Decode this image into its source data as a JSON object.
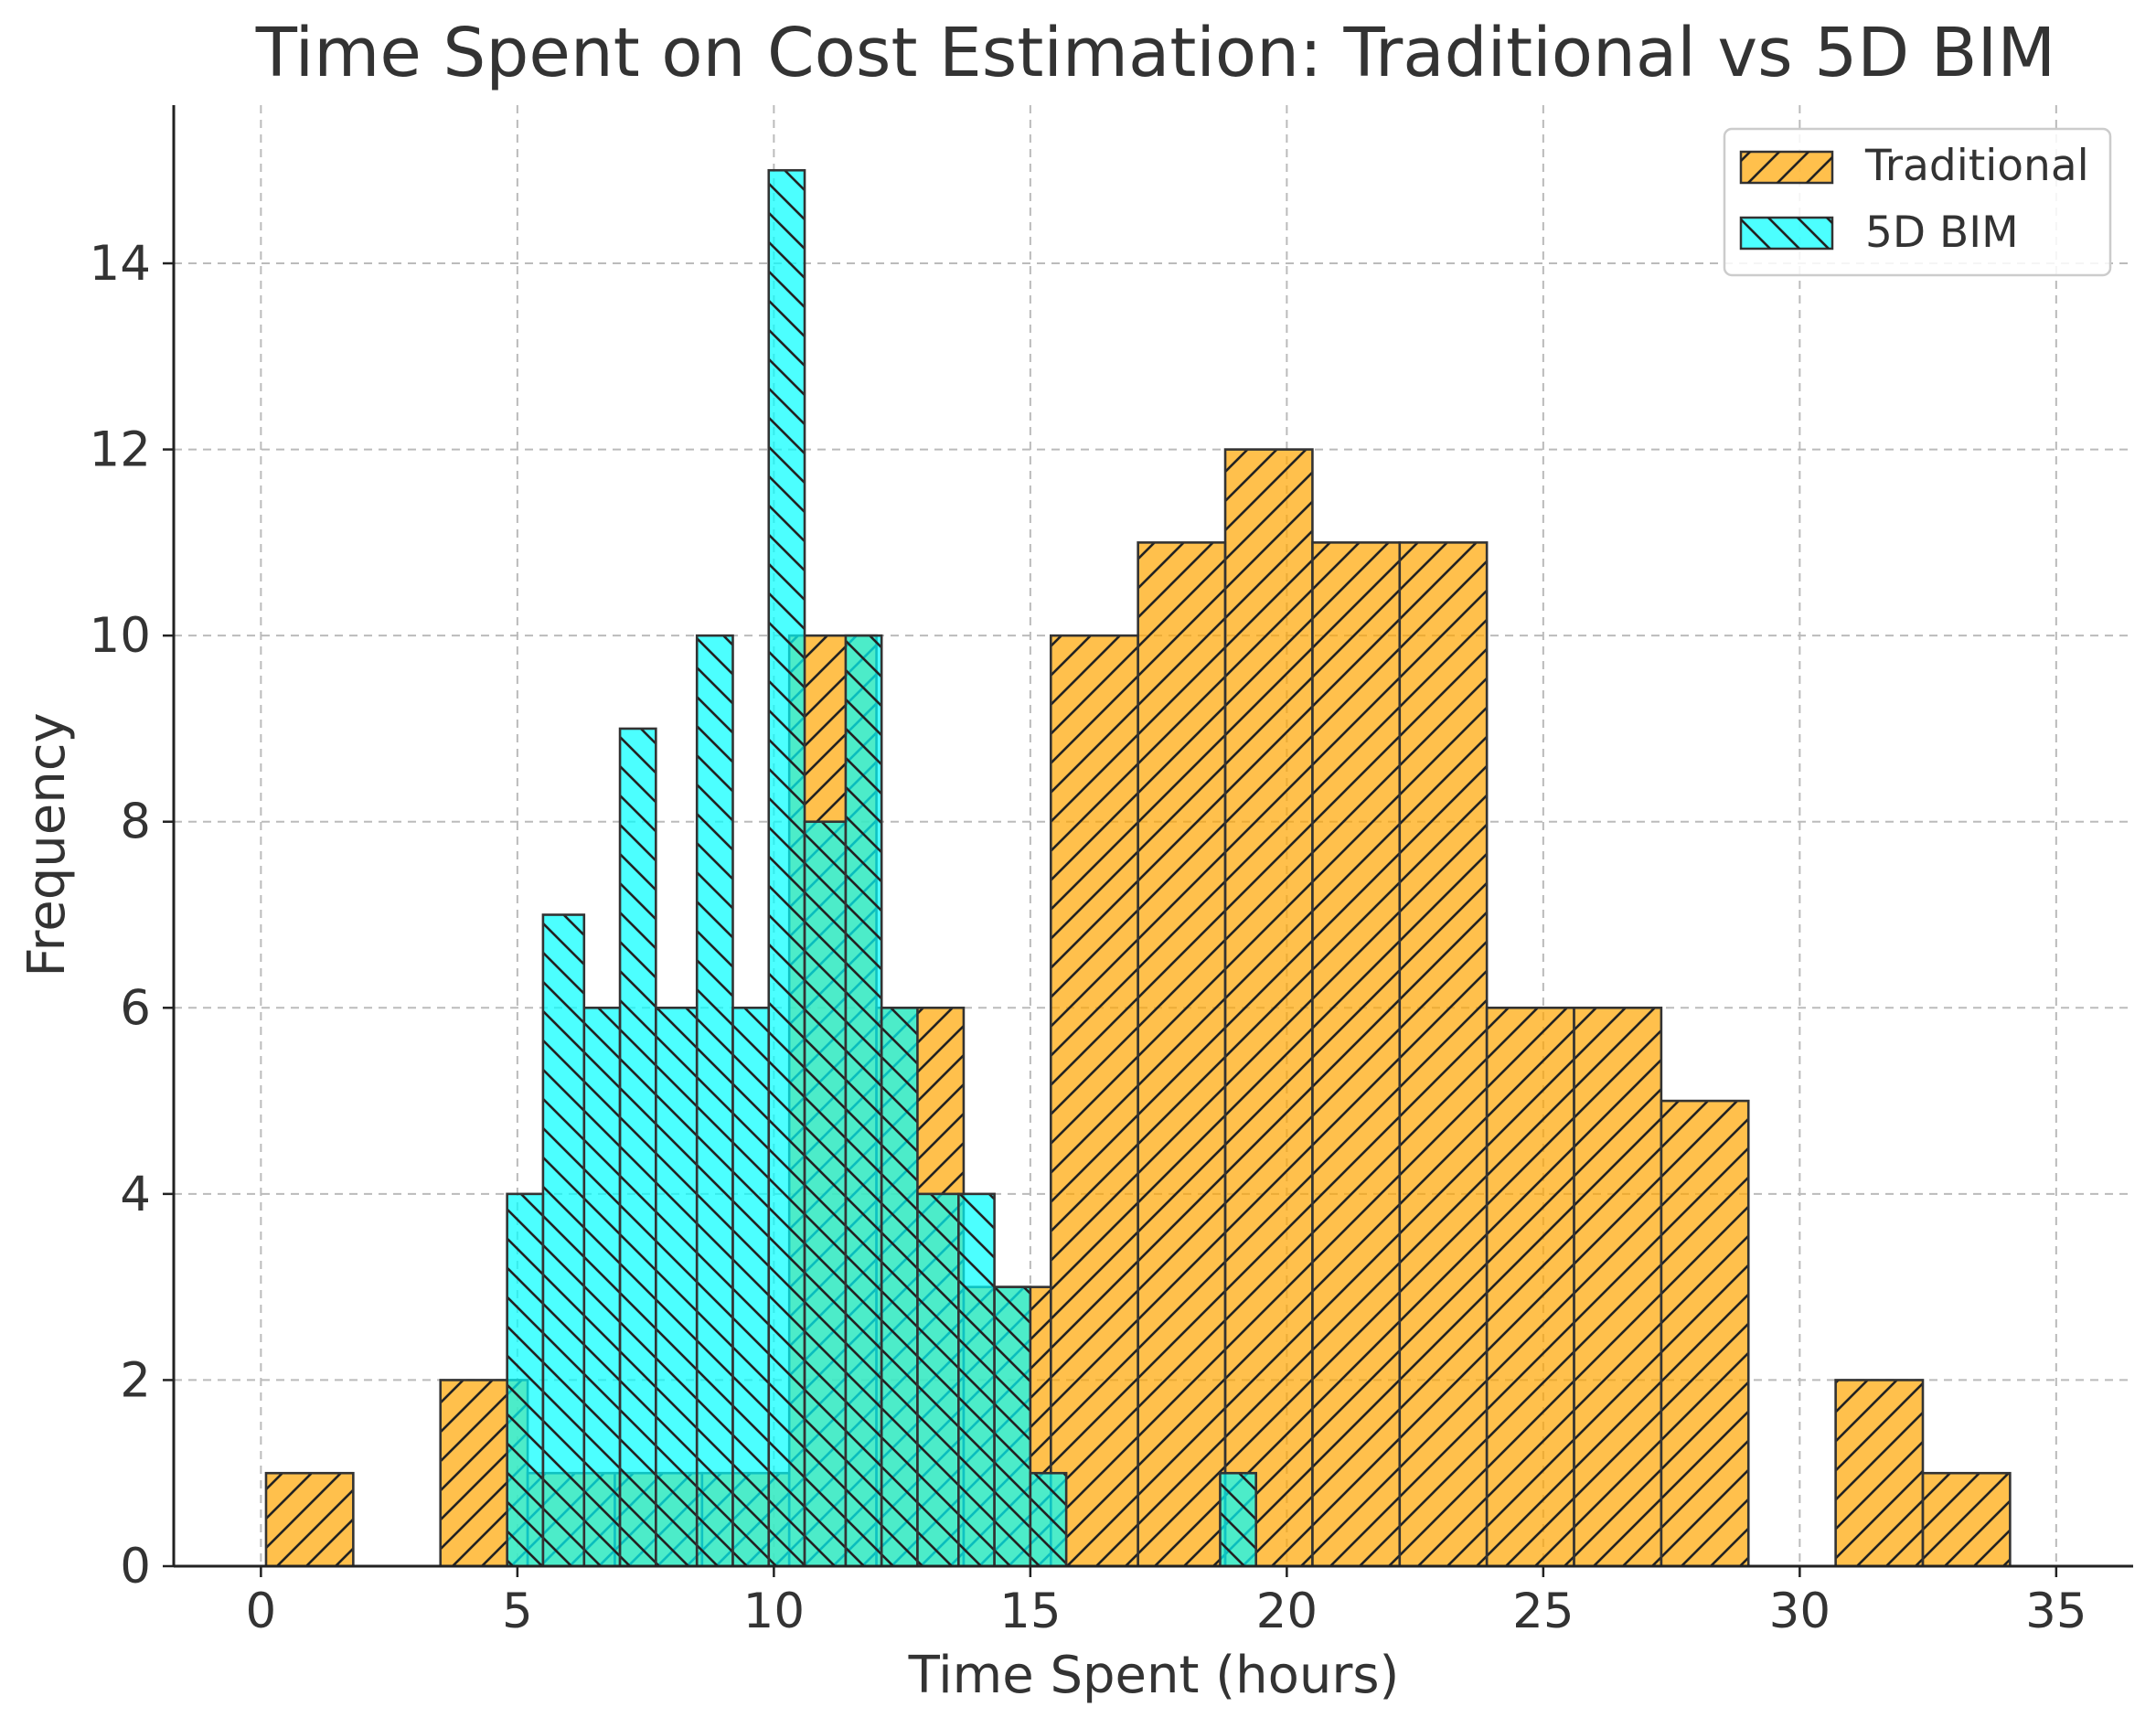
{
  "chart_data": {
    "type": "histogram",
    "title": "Time Spent on Cost Estimation: Traditional vs 5D BIM",
    "xlabel": "Time Spent (hours)",
    "ylabel": "Frequency",
    "xlim": [
      -1.7,
      36.5
    ],
    "ylim": [
      0,
      15.7
    ],
    "xticks": [
      0,
      5,
      10,
      15,
      20,
      25,
      30,
      35
    ],
    "yticks": [
      0,
      2,
      4,
      6,
      8,
      10,
      12,
      14
    ],
    "grid": true,
    "legend_position": "top-right",
    "series": [
      {
        "name": "Traditional",
        "color": "#FFA500",
        "hatch": "forward-diagonal",
        "bins": [
          {
            "x0": 0.1,
            "x1": 1.8,
            "count": 1
          },
          {
            "x0": 3.5,
            "x1": 5.2,
            "count": 2
          },
          {
            "x0": 5.2,
            "x1": 6.9,
            "count": 1
          },
          {
            "x0": 6.9,
            "x1": 8.6,
            "count": 1
          },
          {
            "x0": 8.6,
            "x1": 10.3,
            "count": 1
          },
          {
            "x0": 10.3,
            "x1": 12.0,
            "count": 10
          },
          {
            "x0": 12.0,
            "x1": 13.7,
            "count": 6
          },
          {
            "x0": 13.7,
            "x1": 15.4,
            "count": 3
          },
          {
            "x0": 15.4,
            "x1": 17.1,
            "count": 10
          },
          {
            "x0": 17.1,
            "x1": 18.8,
            "count": 11
          },
          {
            "x0": 18.8,
            "x1": 20.5,
            "count": 12
          },
          {
            "x0": 20.5,
            "x1": 22.2,
            "count": 11
          },
          {
            "x0": 22.2,
            "x1": 23.9,
            "count": 11
          },
          {
            "x0": 23.9,
            "x1": 25.6,
            "count": 6
          },
          {
            "x0": 25.6,
            "x1": 27.3,
            "count": 6
          },
          {
            "x0": 27.3,
            "x1": 29.0,
            "count": 5
          },
          {
            "x0": 30.7,
            "x1": 32.4,
            "count": 2
          },
          {
            "x0": 32.4,
            "x1": 34.1,
            "count": 1
          }
        ]
      },
      {
        "name": "5D BIM",
        "color": "#00FFFF",
        "hatch": "back-diagonal",
        "bins": [
          {
            "x0": 4.8,
            "x1": 5.5,
            "count": 4
          },
          {
            "x0": 5.5,
            "x1": 6.3,
            "count": 7
          },
          {
            "x0": 6.3,
            "x1": 7.0,
            "count": 6
          },
          {
            "x0": 7.0,
            "x1": 7.7,
            "count": 9
          },
          {
            "x0": 7.7,
            "x1": 8.5,
            "count": 6
          },
          {
            "x0": 8.5,
            "x1": 9.2,
            "count": 10
          },
          {
            "x0": 9.2,
            "x1": 9.9,
            "count": 6
          },
          {
            "x0": 9.9,
            "x1": 10.6,
            "count": 15
          },
          {
            "x0": 10.6,
            "x1": 11.4,
            "count": 8
          },
          {
            "x0": 11.4,
            "x1": 12.1,
            "count": 10
          },
          {
            "x0": 12.1,
            "x1": 12.8,
            "count": 6
          },
          {
            "x0": 12.8,
            "x1": 13.6,
            "count": 4
          },
          {
            "x0": 13.6,
            "x1": 14.3,
            "count": 4
          },
          {
            "x0": 14.3,
            "x1": 15.0,
            "count": 3
          },
          {
            "x0": 15.0,
            "x1": 15.7,
            "count": 1
          },
          {
            "x0": 18.7,
            "x1": 19.4,
            "count": 1
          }
        ]
      }
    ]
  }
}
